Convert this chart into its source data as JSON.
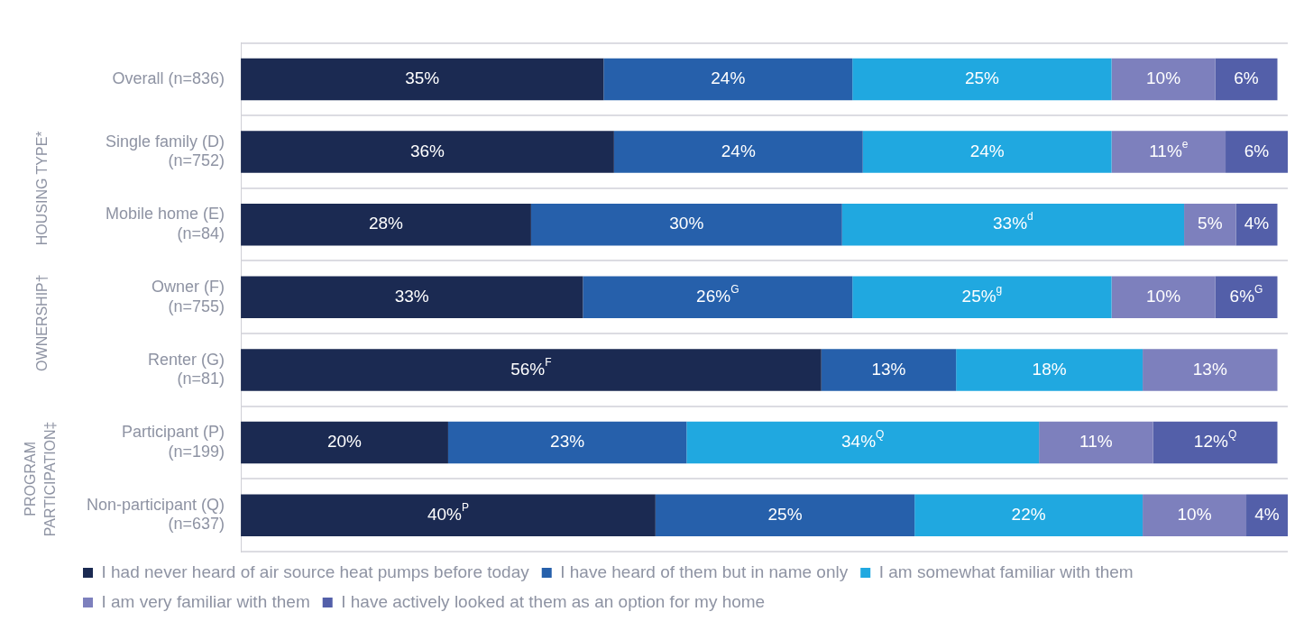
{
  "chart_data": {
    "type": "bar",
    "orientation": "horizontal",
    "stacked": true,
    "grid": "y",
    "legend": "bottom",
    "xlim": [
      0,
      101
    ],
    "tick_labels": "y",
    "categories": [
      "Overall (n=836)",
      "Single family (D)\n(n=752)",
      "Mobile home (E)\n(n=84)",
      "Owner (F)\n(n=755)",
      "Renter (G)\n(n=81)",
      "Participant (P)\n(n=199)",
      "Non-participant (Q)\n(n=637)"
    ],
    "series": [
      {
        "name": "I had never heard of air source heat pumps before today",
        "color": "#1b2a52",
        "values": [
          35,
          36,
          28,
          33,
          56,
          20,
          40
        ],
        "value_labels": [
          "35%",
          "36%",
          "28%",
          "33%",
          "56%$^{F}$",
          "20%",
          "40%$^{P}$"
        ]
      },
      {
        "name": "I have heard of them but in name only",
        "color": "#2660ab",
        "values": [
          24,
          24,
          30,
          26,
          13,
          23,
          25
        ],
        "value_labels": [
          "24%",
          "24%",
          "30%",
          "26%$^{G}$",
          "13%",
          "23%",
          "25%"
        ]
      },
      {
        "name": "I am somewhat familiar with them",
        "color": "#20a8e0",
        "values": [
          25,
          24,
          33,
          25,
          18,
          34,
          22
        ],
        "value_labels": [
          "25%",
          "24%",
          "33%$^{d}$",
          "25%$^{g}$",
          "18%",
          "34%$^{Q}$",
          "22%"
        ]
      },
      {
        "name": "I am very familiar with them",
        "color": "#7d80bd",
        "values": [
          10,
          11,
          5,
          10,
          13,
          11,
          10
        ],
        "value_labels": [
          "10%",
          "11%$^{e}$",
          "5%",
          "10%",
          "13%",
          "11%",
          "10%"
        ]
      },
      {
        "name": "I have actively looked at them as an option for my home",
        "color": "#535fa9",
        "values": [
          6,
          6,
          4,
          6,
          null,
          12,
          4
        ],
        "value_labels": [
          "6%",
          "6%",
          "4%",
          "6%$^{G}$",
          null,
          "12%$^{Q}$",
          "4%"
        ]
      }
    ],
    "annotations": [
      "HOUSING TYPE*",
      "OWNERSHIP†",
      "PROGRAM\nPARTICIPATION‡"
    ]
  }
}
